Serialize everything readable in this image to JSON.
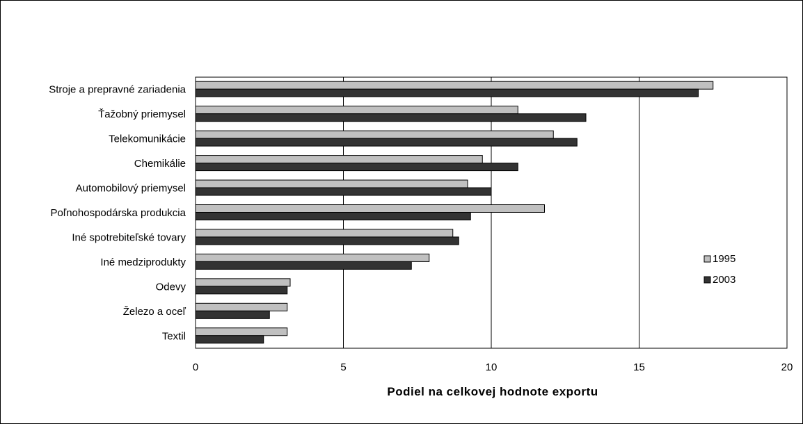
{
  "chart_data": {
    "type": "bar",
    "orientation": "horizontal",
    "categories": [
      "Stroje a prepravné zariadenia",
      "Ťažobný priemysel",
      "Telekomunikácie",
      "Chemikálie",
      "Automobilový priemysel",
      "Poľnohospodárska produkcia",
      "Iné spotrebiteľské tovary",
      "Iné medziprodukty",
      "Odevy",
      "Železo a oceľ",
      "Textil"
    ],
    "series": [
      {
        "name": "1995",
        "color": "#c0c0c0",
        "values": [
          17.5,
          10.9,
          12.1,
          9.7,
          9.2,
          11.8,
          8.7,
          7.9,
          3.2,
          3.1,
          3.1
        ]
      },
      {
        "name": "2003",
        "color": "#333333",
        "values": [
          17.0,
          13.2,
          12.9,
          10.9,
          10.0,
          9.3,
          8.9,
          7.3,
          3.1,
          2.5,
          2.3
        ]
      }
    ],
    "xlabel": "Podiel na celkovej hodnote exportu",
    "ylabel": "",
    "xlim": [
      0,
      20
    ],
    "xticks": [
      "0",
      "5",
      "10",
      "15",
      "20"
    ],
    "grid": "vertical",
    "legend_position": "right"
  }
}
